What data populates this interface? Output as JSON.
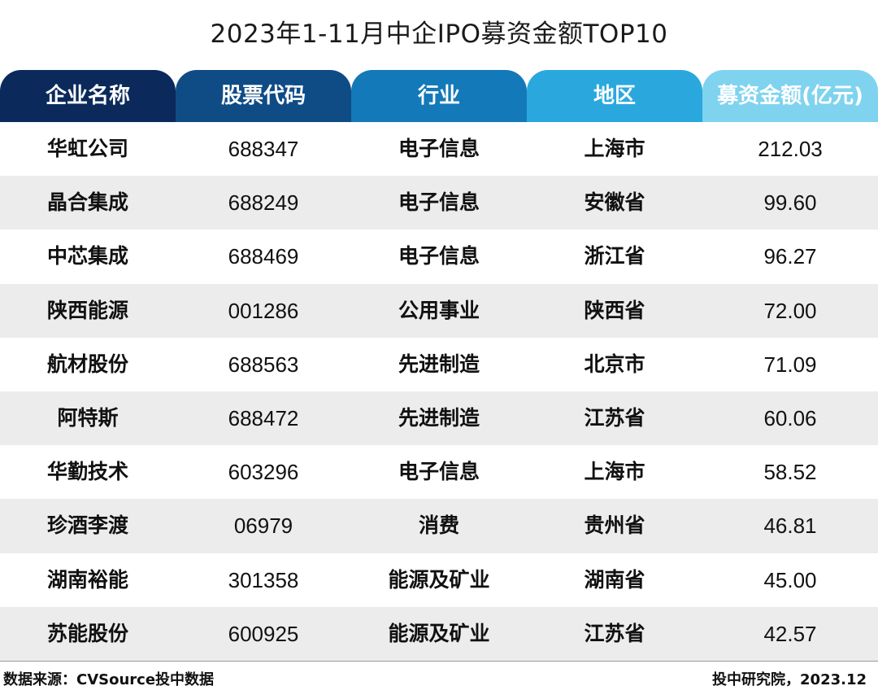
{
  "title": "2023年1-11月中企IPO募资金额TOP10",
  "colors": {
    "header": [
      "#0b2a5b",
      "#0f4c86",
      "#1479b8",
      "#2aa8de",
      "#7fd3ef"
    ],
    "row_alt": "#ececec",
    "rule": "#9a9a9a"
  },
  "chart_data": {
    "type": "table",
    "title": "2023年1-11月中企IPO募资金额TOP10",
    "columns": [
      "企业名称",
      "股票代码",
      "行业",
      "地区",
      "募资金额(亿元)"
    ],
    "rows": [
      [
        "华虹公司",
        "688347",
        "电子信息",
        "上海市",
        "212.03"
      ],
      [
        "晶合集成",
        "688249",
        "电子信息",
        "安徽省",
        "99.60"
      ],
      [
        "中芯集成",
        "688469",
        "电子信息",
        "浙江省",
        "96.27"
      ],
      [
        "陕西能源",
        "001286",
        "公用事业",
        "陕西省",
        "72.00"
      ],
      [
        "航材股份",
        "688563",
        "先进制造",
        "北京市",
        "71.09"
      ],
      [
        "阿特斯",
        "688472",
        "先进制造",
        "江苏省",
        "60.06"
      ],
      [
        "华勤技术",
        "603296",
        "电子信息",
        "上海市",
        "58.52"
      ],
      [
        "珍酒李渡",
        "06979",
        "消费",
        "贵州省",
        "46.81"
      ],
      [
        "湖南裕能",
        "301358",
        "能源及矿业",
        "湖南省",
        "45.00"
      ],
      [
        "苏能股份",
        "600925",
        "能源及矿业",
        "江苏省",
        "42.57"
      ]
    ]
  },
  "footer": {
    "source": "数据来源：CVSource投中数据",
    "credit": "投中研究院，2023.12"
  }
}
